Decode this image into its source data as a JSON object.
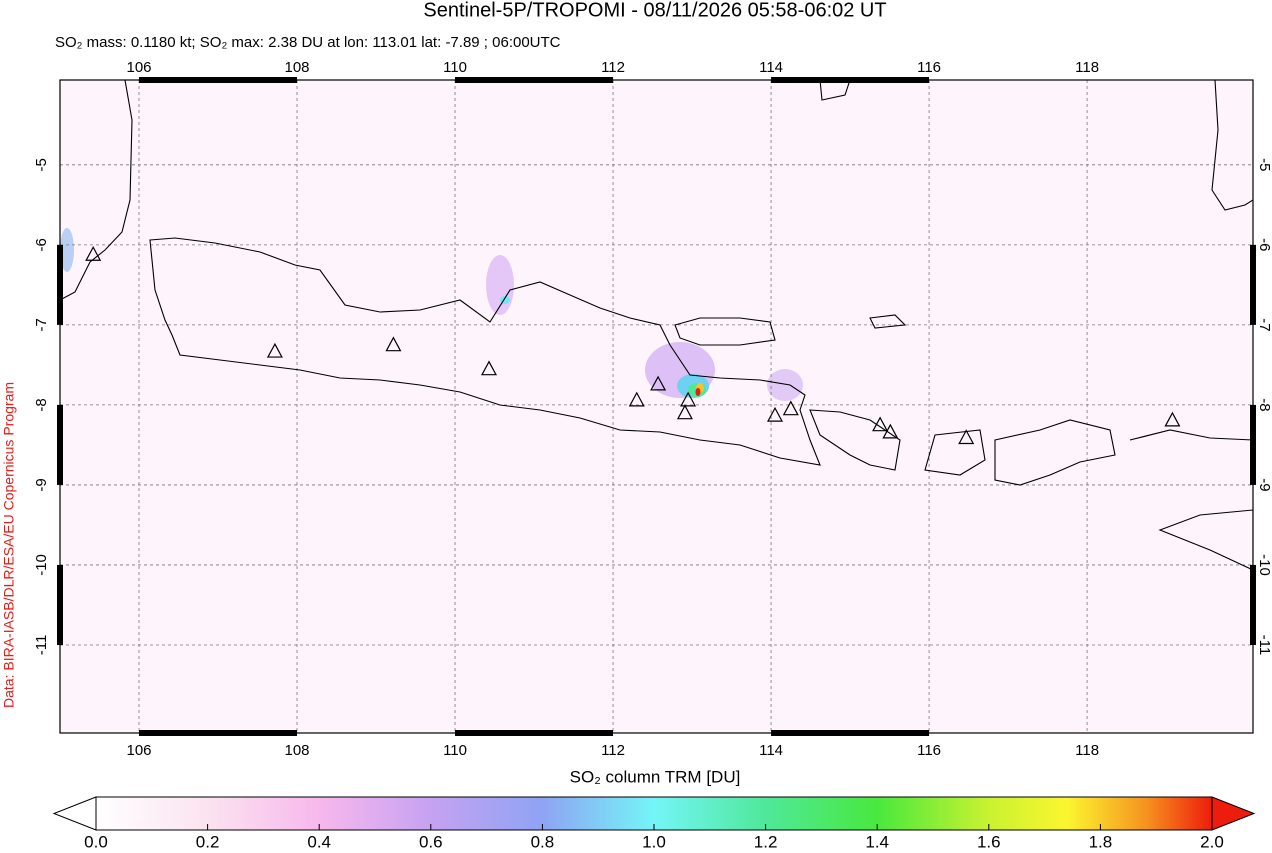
{
  "chart_data": {
    "type": "map",
    "title": "Sentinel-5P/TROPOMI - 08/11/2026 05:58-06:02 UT",
    "subtitle": "SO₂ mass: 0.1180 kt; SO₂ max: 2.38 DU at lon: 113.01 lat: -7.89 ; 06:00UTC",
    "credit": "Data: BIRA-IASB/DLR/ESA/EU Copernicus Program",
    "colorbar_label": "SO₂ column TRM [DU]",
    "xlim": [
      105,
      120.1
    ],
    "ylim": [
      -12.1,
      -3.94
    ],
    "xticks": [
      106,
      108,
      110,
      112,
      114,
      116,
      118
    ],
    "yticks": [
      -5,
      -6,
      -7,
      -8,
      -9,
      -10,
      -11
    ],
    "grid": true,
    "colorbar_lim": [
      0,
      2
    ],
    "colorbar_ticks": [
      {
        "value": 0,
        "label": "0.0"
      },
      {
        "value": 0.2,
        "label": "0.2"
      },
      {
        "value": 0.4,
        "label": "0.4"
      },
      {
        "value": 0.6,
        "label": "0.6"
      },
      {
        "value": 0.8,
        "label": "0.8"
      },
      {
        "value": 1,
        "label": "1.0"
      },
      {
        "value": 1.2,
        "label": "1.2"
      },
      {
        "value": 1.4,
        "label": "1.4"
      },
      {
        "value": 1.6,
        "label": "1.6"
      },
      {
        "value": 1.8,
        "label": "1.8"
      },
      {
        "value": 2,
        "label": "2.0"
      }
    ],
    "volcanoes": {
      "lon": [
        105.42,
        107.72,
        109.22,
        110.43,
        112.3,
        112.57,
        112.91,
        112.95,
        114.05,
        114.25,
        115.38,
        115.51,
        116.47,
        119.08
      ],
      "lat": [
        -6.13,
        -7.34,
        -7.26,
        -7.56,
        -7.95,
        -7.75,
        -8.11,
        -7.95,
        -8.14,
        -8.06,
        -8.26,
        -8.35,
        -8.42,
        -8.2
      ]
    }
  }
}
